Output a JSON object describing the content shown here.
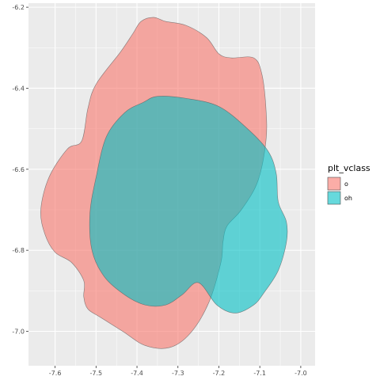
{
  "chart_data": {
    "type": "area",
    "title": "",
    "xlabel": "",
    "ylabel": "",
    "xlim": [
      -7.665,
      -6.965
    ],
    "ylim": [
      -7.085,
      -6.19
    ],
    "x_ticks": [
      "-7.6",
      "-7.5",
      "-7.4",
      "-7.3",
      "-7.2",
      "-7.1",
      "-7.0"
    ],
    "y_ticks": [
      "-6.2",
      "-6.4",
      "-6.6",
      "-6.8",
      "-7.0"
    ],
    "grid": true,
    "legend_position": "right",
    "legend_title": "plt_vclass",
    "series": [
      {
        "name": "o",
        "color": "#F8766D",
        "alpha": 0.6,
        "polygon": [
          [
            -7.33,
            -6.235
          ],
          [
            -7.28,
            -6.245
          ],
          [
            -7.23,
            -6.275
          ],
          [
            -7.2,
            -6.315
          ],
          [
            -7.17,
            -6.325
          ],
          [
            -7.115,
            -6.325
          ],
          [
            -7.095,
            -6.365
          ],
          [
            -7.085,
            -6.45
          ],
          [
            -7.085,
            -6.53
          ],
          [
            -7.105,
            -6.63
          ],
          [
            -7.145,
            -6.7
          ],
          [
            -7.18,
            -6.74
          ],
          [
            -7.19,
            -6.78
          ],
          [
            -7.195,
            -6.83
          ],
          [
            -7.225,
            -6.93
          ],
          [
            -7.27,
            -7.005
          ],
          [
            -7.32,
            -7.04
          ],
          [
            -7.38,
            -7.035
          ],
          [
            -7.435,
            -7.0
          ],
          [
            -7.49,
            -6.965
          ],
          [
            -7.52,
            -6.945
          ],
          [
            -7.53,
            -6.915
          ],
          [
            -7.53,
            -6.875
          ],
          [
            -7.56,
            -6.83
          ],
          [
            -7.6,
            -6.805
          ],
          [
            -7.625,
            -6.76
          ],
          [
            -7.635,
            -6.7
          ],
          [
            -7.615,
            -6.62
          ],
          [
            -7.57,
            -6.55
          ],
          [
            -7.535,
            -6.53
          ],
          [
            -7.52,
            -6.45
          ],
          [
            -7.5,
            -6.39
          ],
          [
            -7.44,
            -6.31
          ],
          [
            -7.41,
            -6.265
          ],
          [
            -7.39,
            -6.235
          ],
          [
            -7.36,
            -6.225
          ]
        ]
      },
      {
        "name": "oh",
        "color": "#00BFC4",
        "alpha": 0.6,
        "polygon": [
          [
            -7.35,
            -6.42
          ],
          [
            -7.28,
            -6.425
          ],
          [
            -7.2,
            -6.445
          ],
          [
            -7.13,
            -6.5
          ],
          [
            -7.08,
            -6.555
          ],
          [
            -7.06,
            -6.61
          ],
          [
            -7.055,
            -6.68
          ],
          [
            -7.035,
            -6.73
          ],
          [
            -7.035,
            -6.78
          ],
          [
            -7.055,
            -6.85
          ],
          [
            -7.09,
            -6.905
          ],
          [
            -7.115,
            -6.935
          ],
          [
            -7.16,
            -6.955
          ],
          [
            -7.205,
            -6.935
          ],
          [
            -7.25,
            -6.88
          ],
          [
            -7.29,
            -6.91
          ],
          [
            -7.33,
            -6.935
          ],
          [
            -7.38,
            -6.935
          ],
          [
            -7.43,
            -6.91
          ],
          [
            -7.48,
            -6.865
          ],
          [
            -7.51,
            -6.8
          ],
          [
            -7.515,
            -6.71
          ],
          [
            -7.5,
            -6.62
          ],
          [
            -7.475,
            -6.52
          ],
          [
            -7.43,
            -6.46
          ],
          [
            -7.385,
            -6.435
          ]
        ]
      }
    ]
  }
}
